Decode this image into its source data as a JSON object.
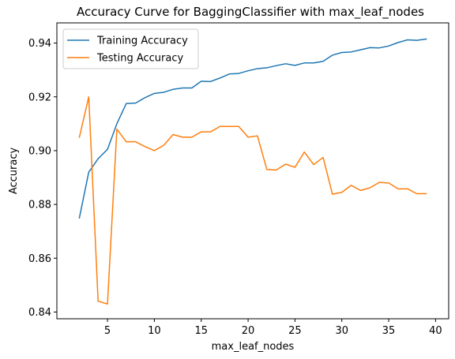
{
  "chart_data": {
    "type": "line",
    "title": "Accuracy Curve for BaggingClassifier with max_leaf_nodes",
    "xlabel": "max_leaf_nodes",
    "ylabel": "Accuracy",
    "xlim": [
      -0.4,
      41.4
    ],
    "ylim": [
      0.8375,
      0.9475
    ],
    "xticks": [
      5,
      10,
      15,
      20,
      25,
      30,
      35,
      40
    ],
    "yticks": [
      0.84,
      0.86,
      0.88,
      0.9,
      0.92,
      0.94
    ],
    "ytick_labels": [
      "0.84",
      "0.86",
      "0.88",
      "0.90",
      "0.92",
      "0.94"
    ],
    "grid": false,
    "legend_position": "top-left",
    "x": [
      2,
      3,
      4,
      5,
      6,
      7,
      8,
      9,
      10,
      11,
      12,
      13,
      14,
      15,
      16,
      17,
      18,
      19,
      20,
      21,
      22,
      23,
      24,
      25,
      26,
      27,
      28,
      29,
      30,
      31,
      32,
      33,
      34,
      35,
      36,
      37,
      38,
      39
    ],
    "series": [
      {
        "name": "Training Accuracy",
        "color": "#1f77b4",
        "values": [
          0.875,
          0.892,
          0.897,
          0.9005,
          0.91,
          0.9175,
          0.9177,
          0.9197,
          0.9213,
          0.9217,
          0.9228,
          0.9233,
          0.9233,
          0.9258,
          0.9257,
          0.927,
          0.9285,
          0.9287,
          0.9297,
          0.9305,
          0.9308,
          0.9316,
          0.9323,
          0.9317,
          0.9326,
          0.9326,
          0.9332,
          0.9355,
          0.9365,
          0.9367,
          0.9375,
          0.9383,
          0.9382,
          0.9389,
          0.9402,
          0.9412,
          0.941,
          0.9415
        ]
      },
      {
        "name": "Testing Accuracy",
        "color": "#ff7f0e",
        "values": [
          0.905,
          0.92,
          0.844,
          0.843,
          0.908,
          0.9033,
          0.9033,
          0.9015,
          0.9,
          0.902,
          0.906,
          0.905,
          0.905,
          0.907,
          0.907,
          0.909,
          0.909,
          0.909,
          0.905,
          0.9055,
          0.893,
          0.8928,
          0.895,
          0.8938,
          0.8995,
          0.8948,
          0.8975,
          0.8838,
          0.8845,
          0.8871,
          0.8852,
          0.8862,
          0.8882,
          0.888,
          0.8858,
          0.8858,
          0.884,
          0.884
        ]
      }
    ]
  }
}
